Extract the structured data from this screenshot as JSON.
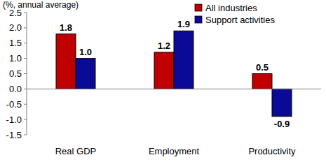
{
  "chart_data": {
    "type": "bar",
    "y_label": "(%, annual average)",
    "categories": [
      "Real GDP",
      "Employment",
      "Productivity"
    ],
    "series": [
      {
        "name": "All industries",
        "color": "#c00000",
        "values": [
          1.8,
          1.2,
          0.5
        ],
        "value_labels": [
          "1.8",
          "1.2",
          "0.5"
        ]
      },
      {
        "name": "Support activities",
        "color": "#0a0a96",
        "values": [
          1.0,
          1.9,
          -0.9
        ],
        "value_labels": [
          "1.0",
          "1.9",
          "-0.9"
        ]
      }
    ],
    "ylim": [
      -1.5,
      2.5
    ],
    "yticks": [
      -1.5,
      {
        "value": -1,
        "label": "-1.0"
      },
      -0.5,
      {
        "value": 0,
        "label": "0.0"
      },
      0.5,
      {
        "value": 1,
        "label": "1.0"
      },
      1.5,
      {
        "value": 2,
        "label": "2.0"
      },
      2.5
    ],
    "grid": false,
    "legend": "top-right",
    "data_labels": true
  }
}
